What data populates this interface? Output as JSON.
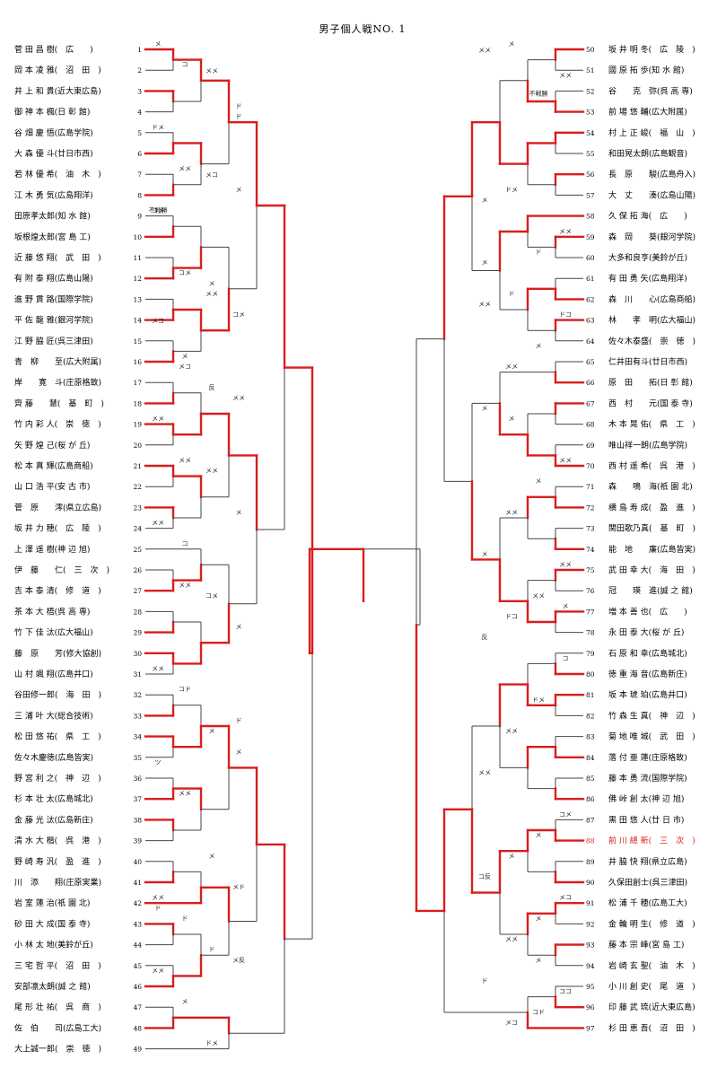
{
  "title": "男子個人戦NO. 1",
  "highlight_color": "#d81e1e",
  "line_color": "#444444",
  "left": {
    "players": [
      {
        "no": "1",
        "text": "菅 田 昌 樹(　広　　)"
      },
      {
        "no": "2",
        "text": "岡 本 凌 雅(　沼　田　)"
      },
      {
        "no": "3",
        "text": "井 上 和 貴(近大東広島)"
      },
      {
        "no": "4",
        "text": "御 神 本 楓(日 彰 館)"
      },
      {
        "no": "5",
        "text": "谷 畑 慶 悟(広島学院)"
      },
      {
        "no": "6",
        "text": "大 森 優 斗(廿日市西)"
      },
      {
        "no": "7",
        "text": "若 林 優 希(　油　木　)"
      },
      {
        "no": "8",
        "text": "江 木 勇 気(広島翔洋)"
      },
      {
        "no": "9",
        "text": "田原孝太郎(知 水 館)"
      },
      {
        "no": "10",
        "text": "坂根煌太郎(宮 島 工)"
      },
      {
        "no": "11",
        "text": "近 藤 悠 翔(　武　田　)"
      },
      {
        "no": "12",
        "text": "有 附 泰 翔(広島山陽)"
      },
      {
        "no": "13",
        "text": "進 野 貫 路(国際学院)"
      },
      {
        "no": "14",
        "text": "平 佐 龍 雅(銀河学院)"
      },
      {
        "no": "15",
        "text": "江 野 脇 匠(呉三津田)"
      },
      {
        "no": "16",
        "text": "青　柳　　至(広大附属)"
      },
      {
        "no": "17",
        "text": "岸　　寛　斗(庄原格致)"
      },
      {
        "no": "18",
        "text": "齊 藤　　慧(　基　町　)"
      },
      {
        "no": "19",
        "text": "竹 内 彩 人(　崇　徳　)"
      },
      {
        "no": "20",
        "text": "矢 野 煌 己(桜 が 丘)"
      },
      {
        "no": "21",
        "text": "松 本 真 輝(広島商船)"
      },
      {
        "no": "22",
        "text": "山 口 浩 平(安 古 市)"
      },
      {
        "no": "23",
        "text": "菅　原　　澪(県立広島)"
      },
      {
        "no": "24",
        "text": "坂 井 力 穂(　広　陵　)"
      },
      {
        "no": "25",
        "text": "上 澤 遥 樹(神 辺 旭)"
      },
      {
        "no": "26",
        "text": "伊　藤　　仁(　三　次　)"
      },
      {
        "no": "27",
        "text": "吉 本 泰 清(　修　道　)"
      },
      {
        "no": "28",
        "text": "茶 本 大 梧(呉 高 専)"
      },
      {
        "no": "29",
        "text": "竹 下 佳 汰(広大福山)"
      },
      {
        "no": "30",
        "text": "藤　原　　芳(修大協創)"
      },
      {
        "no": "31",
        "text": "山 村 颯 翔(広島井口)"
      },
      {
        "no": "32",
        "text": "谷田修一郎(　海　田　)"
      },
      {
        "no": "33",
        "text": "三 浦 叶 大(総合技術)"
      },
      {
        "no": "34",
        "text": "松 田 悠 祐(　県　工　)"
      },
      {
        "no": "35",
        "text": "佐々木慶徳(広島皆実)"
      },
      {
        "no": "36",
        "text": "野 宮 利 之(　神　辺　)"
      },
      {
        "no": "37",
        "text": "杉 本 壮 太(広島城北)"
      },
      {
        "no": "38",
        "text": "金 藤 光 汰(広島新庄)"
      },
      {
        "no": "39",
        "text": "清 水 大 楷(　呉　港　)"
      },
      {
        "no": "40",
        "text": "野 崎 寿 汎(　盈　進　)"
      },
      {
        "no": "41",
        "text": "川　添　　翔(庄原実業)"
      },
      {
        "no": "42",
        "text": "岩 室 蓮 治(祇 園 北)"
      },
      {
        "no": "43",
        "text": "砂 田 大 成(国 泰 寺)"
      },
      {
        "no": "44",
        "text": "小 林 太 地(美鈴が丘)"
      },
      {
        "no": "45",
        "text": "三 宅 哲 平(　沼　田　)"
      },
      {
        "no": "46",
        "text": "安部凛太朗(誠 之 館)"
      },
      {
        "no": "47",
        "text": "尾 形 壮 祐(　呉　商　)"
      },
      {
        "no": "48",
        "text": "佐　伯　　司(広島工大)"
      },
      {
        "no": "49",
        "text": "大上誠一郎(　崇　徳　)"
      }
    ]
  },
  "right": {
    "players": [
      {
        "no": "50",
        "text": "坂 井 明 冬(　広　陵　)"
      },
      {
        "no": "51",
        "text": "國 原 拓 歩(知 水 館)"
      },
      {
        "no": "52",
        "text": "谷　　克　弥(呉 高 専)"
      },
      {
        "no": "53",
        "text": "前 場 悠 輔(広大附属)"
      },
      {
        "no": "54",
        "text": "村 上 正 峻(　福　山　)"
      },
      {
        "no": "55",
        "text": "和田晃太朗(広島観音)"
      },
      {
        "no": "56",
        "text": "長　原　　駿(広島舟入)"
      },
      {
        "no": "57",
        "text": "大　丈　　湊(広島山陽)"
      },
      {
        "no": "58",
        "text": "久 保 拓 海(　広　　)"
      },
      {
        "no": "59",
        "text": "森　岡　　葵(銀河学院)"
      },
      {
        "no": "60",
        "text": "大多和良亨(美鈴が丘)"
      },
      {
        "no": "61",
        "text": "有 田 勇 矢(広島翔洋)"
      },
      {
        "no": "62",
        "text": "森　川　　心(広島商船)"
      },
      {
        "no": "63",
        "text": "林　　孝　明(広大福山)"
      },
      {
        "no": "64",
        "text": "佐々木泰盛(　崇　徳　)"
      },
      {
        "no": "65",
        "text": "仁井田有斗(廿日市西)"
      },
      {
        "no": "66",
        "text": "原　田　　拓(日 彰 館)"
      },
      {
        "no": "67",
        "text": "西　村　　元(国 泰 寺)"
      },
      {
        "no": "68",
        "text": "木 本 晃 佑(　県　工　)"
      },
      {
        "no": "69",
        "text": "唯山祥一朗(広島学院)"
      },
      {
        "no": "70",
        "text": "西 村 遥 希(　呉　港　)"
      },
      {
        "no": "71",
        "text": "森　　鳴　海(祇 園 北)"
      },
      {
        "no": "72",
        "text": "横 島 寿 成(　盈　進　)"
      },
      {
        "no": "73",
        "text": "関田歌乃真(　基　町　)"
      },
      {
        "no": "74",
        "text": "能　地　　廉(広島皆実)"
      },
      {
        "no": "75",
        "text": "武 田 幸 大(　海　田　)"
      },
      {
        "no": "76",
        "text": "冠　　瑛　進(誠 之 館)"
      },
      {
        "no": "77",
        "text": "増 本 善 也(　広　　)"
      },
      {
        "no": "78",
        "text": "永 田 泰 大(桜 が 丘)"
      },
      {
        "no": "79",
        "text": "石 原 和 幸(広島城北)"
      },
      {
        "no": "80",
        "text": "徳 重 海 音(広島新庄)"
      },
      {
        "no": "81",
        "text": "坂 本 琥 珀(広島井口)"
      },
      {
        "no": "82",
        "text": "竹 森 生 真(　神　辺　)"
      },
      {
        "no": "83",
        "text": "菊 地 唯 城(　武　田　)"
      },
      {
        "no": "84",
        "text": "落 付 亜 蓮(庄原格致)"
      },
      {
        "no": "85",
        "text": "藤 本 勇 流(国際学院)"
      },
      {
        "no": "86",
        "text": "佛 峠 創 太(神 辺 旭)"
      },
      {
        "no": "87",
        "text": "黒 田 悠 人(廿 日 市)"
      },
      {
        "no": "88",
        "text": "前 川 總 新(　三　次　)"
      },
      {
        "no": "89",
        "text": "井 脇 快 翔(県立広島)"
      },
      {
        "no": "90",
        "text": "久保田創士(呉三津田)"
      },
      {
        "no": "91",
        "text": "松 浦 千 穂(広島工大)"
      },
      {
        "no": "92",
        "text": "金 輪 明 生(　修　道　)"
      },
      {
        "no": "93",
        "text": "藤 本 宗 峰(宮 島 工)"
      },
      {
        "no": "94",
        "text": "岩 崎 玄 聖(　油　木　)"
      },
      {
        "no": "95",
        "text": "小 川 創 史(　尾　道　)"
      },
      {
        "no": "96",
        "text": "印 藤 武 琉(近大東広島)"
      },
      {
        "no": "97",
        "text": "杉 田 恵 吾(　沼　田　)"
      }
    ]
  },
  "highlighted_player_no": "88",
  "score_marks": [
    {
      "side": "L",
      "row": 1,
      "t": "メ"
    },
    {
      "side": "L",
      "row": 2,
      "t": "コ"
    },
    {
      "side": "L",
      "row": 2.3,
      "t": "メメ"
    },
    {
      "side": "L",
      "row": 4,
      "t": "ド"
    },
    {
      "side": "L",
      "row": 5,
      "t": "ドメ"
    },
    {
      "side": "L",
      "row": 7,
      "t": "メメ"
    },
    {
      "side": "L",
      "row": 7.3,
      "t": "メコ"
    },
    {
      "side": "L",
      "row": 8,
      "t": "メ"
    },
    {
      "side": "L",
      "row": 9,
      "t": "不戦勝"
    },
    {
      "side": "L",
      "row": 12,
      "t": "コメ"
    },
    {
      "side": "L",
      "row": 13,
      "t": "メメ"
    },
    {
      "side": "L",
      "row": 14,
      "t": "コメ"
    },
    {
      "side": "L",
      "row": 14.3,
      "t": "メコ"
    },
    {
      "side": "L",
      "row": 16,
      "t": "メ"
    },
    {
      "side": "L",
      "row": 17.5,
      "t": "反"
    },
    {
      "side": "L",
      "row": 18,
      "t": "メメ"
    },
    {
      "side": "L",
      "row": 19,
      "t": "メメ"
    },
    {
      "side": "L",
      "row": 21,
      "t": "メメ"
    },
    {
      "side": "L",
      "row": 21.5,
      "t": "メメ"
    },
    {
      "side": "L",
      "row": 23.5,
      "t": "メ"
    },
    {
      "side": "L",
      "row": 24,
      "t": "メメ"
    },
    {
      "side": "L",
      "row": 27,
      "t": "メメ"
    },
    {
      "side": "L",
      "row": 27.5,
      "t": "コメ"
    },
    {
      "side": "L",
      "row": 29,
      "t": "メ"
    },
    {
      "side": "L",
      "row": 31,
      "t": "メメ"
    },
    {
      "side": "L",
      "row": 32,
      "t": "コド"
    },
    {
      "side": "L",
      "row": 34,
      "t": "メ"
    },
    {
      "side": "L",
      "row": 35,
      "t": "メ"
    },
    {
      "side": "L",
      "row": 35.5,
      "t": "ツ"
    },
    {
      "side": "L",
      "row": 37,
      "t": "メメ"
    },
    {
      "side": "L",
      "row": 40,
      "t": "メ"
    },
    {
      "side": "L",
      "row": 41.5,
      "t": "メド"
    },
    {
      "side": "L",
      "row": 42,
      "t": "メメ"
    },
    {
      "side": "L",
      "row": 43,
      "t": "ド"
    },
    {
      "side": "L",
      "row": 44.5,
      "t": "ド"
    },
    {
      "side": "L",
      "row": 45,
      "t": "メ反"
    },
    {
      "side": "L",
      "row": 45.5,
      "t": "メメ"
    },
    {
      "side": "L",
      "row": 47,
      "t": "メ"
    },
    {
      "side": "L",
      "row": 49,
      "t": "ドメ"
    },
    {
      "side": "L",
      "row": 4.5,
      "t": "ド"
    },
    {
      "side": "L",
      "row": 9,
      "t": "コメ"
    },
    {
      "side": "L",
      "row": 16.5,
      "t": "メコ"
    },
    {
      "side": "L",
      "row": 12.5,
      "t": "メ"
    },
    {
      "side": "L",
      "row": 33.5,
      "t": "ド"
    },
    {
      "side": "L",
      "row": 42.5,
      "t": "ド"
    },
    {
      "side": "L",
      "row": 25,
      "t": "コ"
    },
    {
      "side": "R",
      "row": 1,
      "t": "メ"
    },
    {
      "side": "R",
      "row": 1.3,
      "t": "メメ"
    },
    {
      "side": "R",
      "row": 2.5,
      "t": "メメ"
    },
    {
      "side": "R",
      "row": 3.4,
      "t": "不戦勝"
    },
    {
      "side": "R",
      "row": 8,
      "t": "ドメ"
    },
    {
      "side": "R",
      "row": 8.5,
      "t": "メ"
    },
    {
      "side": "R",
      "row": 10,
      "t": "メメ"
    },
    {
      "side": "R",
      "row": 11,
      "t": "ド"
    },
    {
      "side": "R",
      "row": 13,
      "t": "ド"
    },
    {
      "side": "R",
      "row": 13.5,
      "t": "メメ"
    },
    {
      "side": "R",
      "row": 14,
      "t": "ドコ"
    },
    {
      "side": "R",
      "row": 15.5,
      "t": "メ"
    },
    {
      "side": "R",
      "row": 16.5,
      "t": "メメ"
    },
    {
      "side": "R",
      "row": 18.5,
      "t": "メ"
    },
    {
      "side": "R",
      "row": 21,
      "t": "メメ"
    },
    {
      "side": "R",
      "row": 22,
      "t": "メ"
    },
    {
      "side": "R",
      "row": 23.5,
      "t": "メメ"
    },
    {
      "side": "R",
      "row": 25.5,
      "t": "メ"
    },
    {
      "side": "R",
      "row": 26,
      "t": "メメ"
    },
    {
      "side": "R",
      "row": 27.5,
      "t": "メメ"
    },
    {
      "side": "R",
      "row": 28.5,
      "t": "ドコ"
    },
    {
      "side": "R",
      "row": 29.5,
      "t": "反"
    },
    {
      "side": "R",
      "row": 30.5,
      "t": "コ"
    },
    {
      "side": "R",
      "row": 32.5,
      "t": "ドメ"
    },
    {
      "side": "R",
      "row": 34,
      "t": "メメ"
    },
    {
      "side": "R",
      "row": 36,
      "t": "メメ"
    },
    {
      "side": "R",
      "row": 38,
      "t": "コメ"
    },
    {
      "side": "R",
      "row": 39,
      "t": "メ"
    },
    {
      "side": "R",
      "row": 40,
      "t": "メ"
    },
    {
      "side": "R",
      "row": 41,
      "t": "コ反"
    },
    {
      "side": "R",
      "row": 42,
      "t": "メコ"
    },
    {
      "side": "R",
      "row": 43,
      "t": "メ"
    },
    {
      "side": "R",
      "row": 44,
      "t": "メメ"
    },
    {
      "side": "R",
      "row": 46,
      "t": "ド"
    },
    {
      "side": "R",
      "row": 46.5,
      "t": "ココ"
    },
    {
      "side": "R",
      "row": 47.5,
      "t": "コド"
    },
    {
      "side": "R",
      "row": 48,
      "t": "メコ"
    },
    {
      "side": "R",
      "row": 11.5,
      "t": "メ"
    },
    {
      "side": "R",
      "row": 28,
      "t": "メ"
    },
    {
      "side": "R",
      "row": 45,
      "t": "メ"
    },
    {
      "side": "R",
      "row": 19,
      "t": "メ"
    }
  ]
}
